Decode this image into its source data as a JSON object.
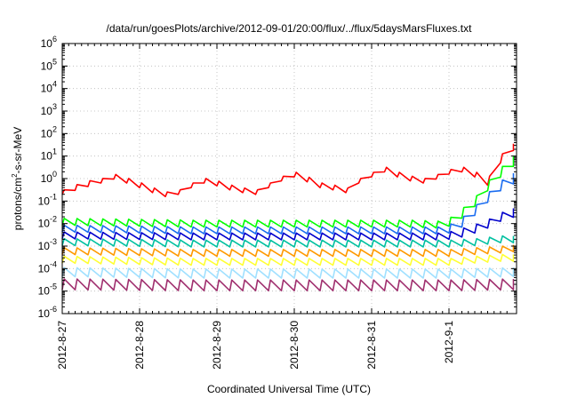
{
  "chart_data": {
    "type": "line",
    "title": "/data/run/goesPlots/archive/2012-09-01/20:00/flux/../flux/5daysMarsFluxes.txt",
    "xlabel": "Coordinated Universal Time (UTC)",
    "ylabel_prefix": "protons/cm",
    "ylabel_sup": "2",
    "ylabel_suffix": "-s-sr-MeV",
    "yscale": "log",
    "ylim": [
      1e-06,
      1000000.0
    ],
    "xlim": [
      "2012-08-27 00:00",
      "2012-09-01 20:00"
    ],
    "x_ticks": [
      "2012-8-27",
      "2012-8-28",
      "2012-8-29",
      "2012-8-30",
      "2012-8-31",
      "2012-9-1"
    ],
    "y_ticks": [
      {
        "base": "10",
        "exp": "-6"
      },
      {
        "base": "10",
        "exp": "-5"
      },
      {
        "base": "10",
        "exp": "-4"
      },
      {
        "base": "10",
        "exp": "-3"
      },
      {
        "base": "10",
        "exp": "-2"
      },
      {
        "base": "10",
        "exp": "-1"
      },
      {
        "base": "10",
        "exp": "0"
      },
      {
        "base": "10",
        "exp": "1"
      },
      {
        "base": "10",
        "exp": "2"
      },
      {
        "base": "10",
        "exp": "3"
      },
      {
        "base": "10",
        "exp": "4"
      },
      {
        "base": "10",
        "exp": "5"
      },
      {
        "base": "10",
        "exp": "6"
      }
    ],
    "grid": true,
    "legend": "none",
    "series": [
      {
        "color": "#ff0000",
        "x_hours": [
          0,
          4,
          8,
          12,
          16,
          20,
          24,
          28,
          32,
          36,
          40,
          44,
          48,
          52,
          56,
          60,
          64,
          68,
          72,
          76,
          80,
          84,
          88,
          92,
          96,
          100,
          104,
          108,
          112,
          116,
          120,
          124,
          128,
          132,
          136,
          140
        ],
        "values": [
          0.25,
          0.4,
          0.6,
          0.8,
          1.2,
          0.8,
          0.5,
          0.3,
          0.2,
          0.25,
          0.5,
          0.8,
          0.6,
          0.4,
          0.3,
          0.25,
          0.5,
          1.0,
          1.5,
          0.9,
          0.5,
          0.4,
          0.3,
          0.8,
          1.5,
          2.5,
          1.5,
          1.0,
          0.8,
          1.2,
          2.0,
          2.5,
          1.5,
          0.8,
          8.0,
          25.0
        ],
        "spikes": [
          1.6,
          1.8,
          1.8,
          1.6,
          1.6,
          1.6,
          1.6,
          1.6,
          1.6,
          1.6,
          1.6,
          1.6,
          1.6,
          1.6,
          1.6,
          1.6,
          1.6,
          1.6,
          1.6,
          1.6,
          1.6,
          1.6,
          1.6,
          1.6,
          1.6,
          1.6,
          1.6,
          1.6,
          1.6,
          1.6,
          1.6,
          1.6,
          1.6,
          2.5,
          2.5,
          2.0
        ]
      },
      {
        "color": "#00ff00",
        "x_hours": [
          0,
          20,
          40,
          60,
          80,
          100,
          108,
          116,
          120,
          124,
          128,
          132,
          136,
          140
        ],
        "values": [
          0.012,
          0.011,
          0.01,
          0.01,
          0.01,
          0.01,
          0.01,
          0.009,
          0.012,
          0.03,
          0.1,
          0.5,
          2.0,
          6.0
        ],
        "spikes": [
          2.0,
          2.0,
          2.0,
          2.0,
          2.0,
          2.0,
          2.0,
          2.0,
          2.5,
          3.0,
          3.0,
          3.0,
          3.0,
          3.0
        ]
      },
      {
        "color": "#1a6cf0",
        "x_hours": [
          0,
          20,
          40,
          60,
          80,
          100,
          108,
          116,
          120,
          124,
          128,
          132,
          136,
          140
        ],
        "values": [
          0.006,
          0.0055,
          0.005,
          0.005,
          0.005,
          0.005,
          0.005,
          0.005,
          0.006,
          0.012,
          0.04,
          0.15,
          0.5,
          1.0
        ],
        "spikes": [
          2.0,
          2.0,
          2.0,
          2.0,
          2.0,
          2.0,
          2.0,
          2.0,
          2.5,
          3.0,
          3.0,
          3.0,
          3.0,
          3.0
        ]
      },
      {
        "color": "#0000cc",
        "x_hours": [
          0,
          20,
          40,
          60,
          80,
          100,
          108,
          116,
          120,
          124,
          128,
          132,
          136,
          140
        ],
        "values": [
          0.003,
          0.0028,
          0.0027,
          0.0027,
          0.0027,
          0.0027,
          0.0027,
          0.0027,
          0.003,
          0.004,
          0.006,
          0.01,
          0.02,
          0.03
        ],
        "spikes": [
          2.0,
          2.0,
          2.0,
          2.0,
          2.0,
          2.0,
          2.0,
          2.0,
          2.2,
          2.5,
          2.5,
          2.5,
          2.5,
          2.5
        ]
      },
      {
        "color": "#00c0a0",
        "x_hours": [
          0,
          20,
          40,
          60,
          80,
          100,
          116,
          120,
          128,
          136,
          140
        ],
        "values": [
          0.0015,
          0.0014,
          0.0013,
          0.0013,
          0.0013,
          0.0013,
          0.0013,
          0.0013,
          0.0015,
          0.002,
          0.002
        ],
        "spikes": [
          2.0,
          2.0,
          2.0,
          2.0,
          2.0,
          2.0,
          2.0,
          2.0,
          2.0,
          2.0,
          2.0
        ]
      },
      {
        "color": "#ff9900",
        "x_hours": [
          0,
          20,
          40,
          60,
          80,
          100,
          116,
          120,
          128,
          136,
          140
        ],
        "values": [
          0.0006,
          0.00055,
          0.0005,
          0.0005,
          0.0005,
          0.0005,
          0.0005,
          0.0005,
          0.0006,
          0.0007,
          0.0008
        ],
        "spikes": [
          2.0,
          2.0,
          2.0,
          2.0,
          2.0,
          2.0,
          2.0,
          2.0,
          2.0,
          2.0,
          2.0
        ]
      },
      {
        "color": "#ffff33",
        "x_hours": [
          0,
          20,
          40,
          60,
          80,
          100,
          116,
          120,
          128,
          136,
          140
        ],
        "values": [
          0.00025,
          0.00022,
          0.0002,
          0.0002,
          0.0002,
          0.0002,
          0.0002,
          0.0002,
          0.00025,
          0.0003,
          0.0003
        ],
        "spikes": [
          2.0,
          2.0,
          2.0,
          2.0,
          2.0,
          2.0,
          2.0,
          2.0,
          2.0,
          2.0,
          2.0
        ]
      },
      {
        "color": "#a0e0ff",
        "x_hours": [
          0,
          40,
          80,
          120,
          140
        ],
        "values": [
          7e-05,
          6e-05,
          6e-05,
          6e-05,
          7e-05
        ],
        "spikes": [
          2.5,
          2.5,
          2.5,
          2.5,
          2.5
        ]
      },
      {
        "color": "#a0306f",
        "x_hours": [
          0,
          40,
          80,
          120,
          140
        ],
        "values": [
          2e-05,
          1.8e-05,
          1.8e-05,
          1.8e-05,
          2e-05
        ],
        "spikes": [
          3.0,
          3.0,
          3.0,
          3.0,
          3.0
        ]
      }
    ]
  }
}
